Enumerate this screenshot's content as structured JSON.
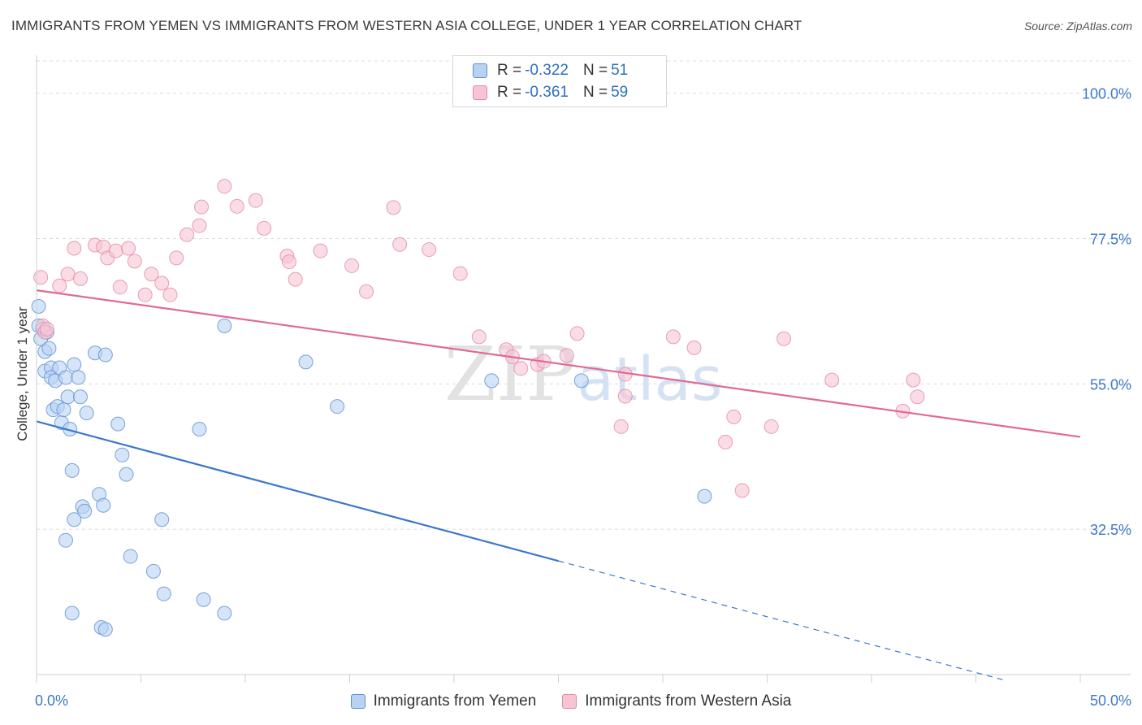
{
  "header": {
    "title": "IMMIGRANTS FROM YEMEN VS IMMIGRANTS FROM WESTERN ASIA COLLEGE, UNDER 1 YEAR CORRELATION CHART",
    "source": "Source: ZipAtlas.com"
  },
  "legend": {
    "r_label": "R =",
    "n_label": "N =",
    "rows": [
      {
        "r": "-0.322",
        "n": "51"
      },
      {
        "r": "-0.361",
        "n": "59"
      }
    ]
  },
  "colors": {
    "yemen_fill": "#b9d2f2",
    "yemen_stroke": "#5b8fd6",
    "yemen_line": "#3a78cc",
    "wasia_fill": "#f7c4d3",
    "wasia_stroke": "#e48aa6",
    "wasia_line": "#e06a94",
    "axis_text": "#3d78c9",
    "grid": "#dcdcdc"
  },
  "watermark": {
    "zip": "ZIP",
    "atlas": "atlas"
  },
  "chart_data": {
    "type": "scatter",
    "title": "IMMIGRANTS FROM YEMEN VS IMMIGRANTS FROM WESTERN ASIA COLLEGE, UNDER 1 YEAR CORRELATION CHART",
    "xlabel": "",
    "ylabel": "College, Under 1 year",
    "xlim": [
      0,
      50
    ],
    "ylim": [
      10,
      105
    ],
    "x_tick_labels": [
      "0.0%",
      "50.0%"
    ],
    "y_ticks": [
      32.5,
      55.0,
      77.5,
      100.0
    ],
    "y_tick_labels": [
      "32.5%",
      "55.0%",
      "77.5%",
      "100.0%"
    ],
    "grid": true,
    "legend_position": "top-center",
    "series": [
      {
        "name": "Immigrants from Yemen",
        "r": -0.322,
        "n": 51,
        "trend": {
          "x0": 0,
          "y0": 49.2,
          "x1": 25,
          "y1": 27.6,
          "dashed_to_x": 46.5
        },
        "points": [
          [
            0.1,
            67.0
          ],
          [
            0.1,
            64.0
          ],
          [
            0.2,
            62.0
          ],
          [
            0.3,
            63.5
          ],
          [
            0.4,
            60.0
          ],
          [
            0.4,
            57.0
          ],
          [
            0.5,
            63.0
          ],
          [
            0.6,
            60.5
          ],
          [
            0.7,
            57.5
          ],
          [
            0.7,
            56.0
          ],
          [
            0.8,
            51.0
          ],
          [
            0.9,
            55.5
          ],
          [
            1.0,
            51.5
          ],
          [
            1.1,
            57.5
          ],
          [
            1.2,
            49.0
          ],
          [
            1.3,
            51.0
          ],
          [
            1.4,
            56.0
          ],
          [
            1.5,
            53.0
          ],
          [
            1.6,
            48.0
          ],
          [
            1.8,
            58.0
          ],
          [
            2.0,
            56.0
          ],
          [
            2.1,
            53.0
          ],
          [
            2.4,
            50.5
          ],
          [
            2.8,
            59.8
          ],
          [
            3.3,
            59.5
          ],
          [
            3.9,
            48.8
          ],
          [
            4.1,
            44.0
          ],
          [
            4.3,
            41.0
          ],
          [
            1.7,
            41.6
          ],
          [
            3.0,
            37.9
          ],
          [
            2.2,
            36.0
          ],
          [
            2.3,
            35.3
          ],
          [
            1.8,
            34.0
          ],
          [
            6.0,
            34.0
          ],
          [
            1.4,
            30.8
          ],
          [
            3.2,
            36.2
          ],
          [
            4.5,
            28.3
          ],
          [
            5.6,
            26.0
          ],
          [
            6.1,
            22.5
          ],
          [
            8.0,
            21.6
          ],
          [
            9.0,
            19.5
          ],
          [
            1.7,
            19.5
          ],
          [
            3.1,
            17.3
          ],
          [
            3.3,
            17.0
          ],
          [
            7.8,
            48.0
          ],
          [
            9.0,
            64.0
          ],
          [
            14.4,
            51.5
          ],
          [
            12.9,
            58.4
          ],
          [
            21.8,
            55.5
          ],
          [
            32.0,
            37.6
          ],
          [
            26.1,
            55.5
          ]
        ]
      },
      {
        "name": "Immigrants from Western Asia",
        "r": -0.361,
        "n": 59,
        "trend": {
          "x0": 0,
          "y0": 69.5,
          "x1": 50,
          "y1": 46.8
        },
        "points": [
          [
            0.2,
            71.5
          ],
          [
            0.3,
            64.0
          ],
          [
            0.4,
            63.0
          ],
          [
            0.5,
            63.5
          ],
          [
            1.1,
            70.2
          ],
          [
            1.5,
            72.0
          ],
          [
            1.8,
            76.0
          ],
          [
            2.1,
            71.3
          ],
          [
            2.8,
            76.5
          ],
          [
            3.2,
            76.2
          ],
          [
            3.4,
            74.5
          ],
          [
            3.8,
            75.6
          ],
          [
            4.0,
            70.0
          ],
          [
            4.4,
            76.0
          ],
          [
            4.7,
            74.0
          ],
          [
            5.5,
            72.0
          ],
          [
            6.0,
            70.6
          ],
          [
            6.7,
            74.5
          ],
          [
            5.2,
            68.8
          ],
          [
            6.4,
            68.8
          ],
          [
            7.2,
            78.1
          ],
          [
            7.8,
            79.5
          ],
          [
            7.9,
            82.4
          ],
          [
            9.0,
            85.6
          ],
          [
            9.6,
            82.5
          ],
          [
            10.5,
            83.4
          ],
          [
            10.9,
            79.1
          ],
          [
            12.0,
            74.8
          ],
          [
            12.1,
            73.9
          ],
          [
            12.4,
            71.2
          ],
          [
            13.6,
            75.6
          ],
          [
            15.1,
            73.3
          ],
          [
            15.8,
            69.3
          ],
          [
            17.1,
            82.3
          ],
          [
            17.4,
            76.6
          ],
          [
            18.8,
            75.8
          ],
          [
            20.3,
            72.1
          ],
          [
            21.2,
            62.3
          ],
          [
            22.5,
            60.3
          ],
          [
            23.2,
            57.4
          ],
          [
            24.0,
            58.0
          ],
          [
            24.3,
            58.5
          ],
          [
            22.8,
            59.2
          ],
          [
            25.4,
            59.4
          ],
          [
            25.9,
            62.8
          ],
          [
            28.2,
            56.5
          ],
          [
            28.2,
            53.1
          ],
          [
            28.0,
            48.4
          ],
          [
            30.5,
            62.3
          ],
          [
            31.5,
            60.6
          ],
          [
            33.4,
            49.9
          ],
          [
            33.8,
            38.5
          ],
          [
            33.0,
            46.0
          ],
          [
            35.2,
            48.4
          ],
          [
            38.1,
            55.6
          ],
          [
            35.8,
            62.0
          ],
          [
            42.2,
            53.0
          ],
          [
            41.5,
            50.8
          ],
          [
            42.0,
            55.6
          ]
        ]
      }
    ]
  },
  "bottom_legend": [
    {
      "label": "Immigrants from Yemen"
    },
    {
      "label": "Immigrants from Western Asia"
    }
  ]
}
